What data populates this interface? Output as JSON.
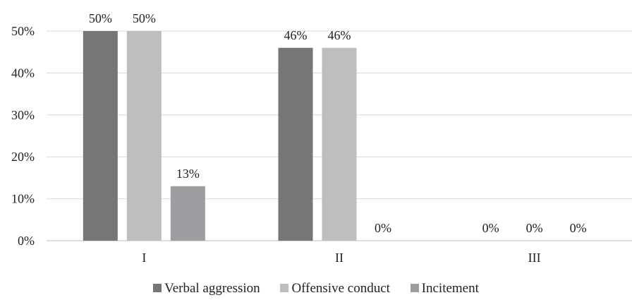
{
  "chart_data": {
    "type": "bar",
    "categories": [
      "I",
      "II",
      "III"
    ],
    "series": [
      {
        "name": "Verbal aggression",
        "values": [
          50,
          46,
          0
        ],
        "labels": [
          "50%",
          "46%",
          "0%"
        ],
        "color": "#767679"
      },
      {
        "name": "Offensive conduct",
        "values": [
          50,
          46,
          0
        ],
        "labels": [
          "50%",
          "46%",
          "0%"
        ],
        "color": "#bebec1"
      },
      {
        "name": "Incitement",
        "values": [
          13,
          0,
          0
        ],
        "labels": [
          "13%",
          "0%",
          "0%"
        ],
        "color": "#9d9ea1"
      }
    ],
    "y_ticks": [
      "0%",
      "10%",
      "20%",
      "30%",
      "40%",
      "50%"
    ],
    "ylim": [
      0,
      50
    ],
    "grid": true,
    "legend_position": "bottom",
    "title": "",
    "xlabel": "",
    "ylabel": ""
  }
}
